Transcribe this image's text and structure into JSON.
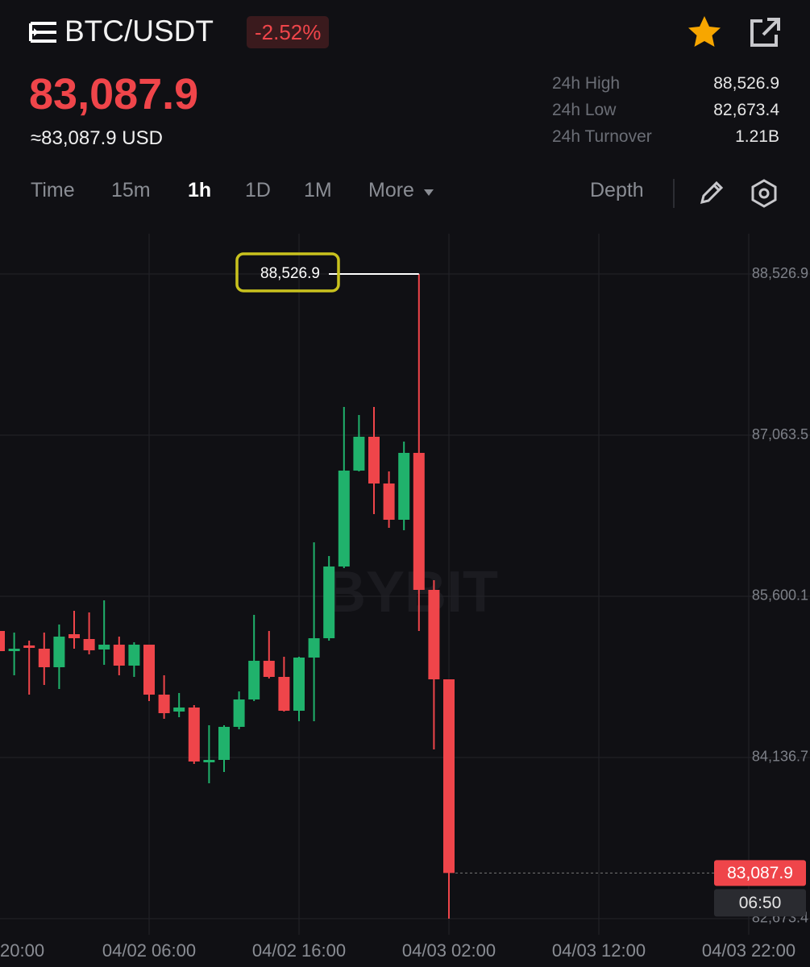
{
  "header": {
    "symbol": "BTC/USDT",
    "change": "-2.52%"
  },
  "price": {
    "last": "83,087.9",
    "usd": "≈83,087.9 USD"
  },
  "stats": [
    {
      "label": "24h High",
      "value": "88,526.9"
    },
    {
      "label": "24h Low",
      "value": "82,673.4"
    },
    {
      "label": "24h Turnover",
      "value": "1.21B"
    }
  ],
  "tabs": [
    "Time",
    "15m",
    "1h",
    "1D",
    "1M",
    "More"
  ],
  "depth": "Depth",
  "chart_data": {
    "type": "candlestick",
    "categories": [
      "20:00",
      null,
      null,
      null,
      null,
      null,
      null,
      null,
      null,
      null,
      "04/02 06:00",
      null,
      null,
      null,
      null,
      null,
      null,
      null,
      null,
      null,
      "04/02 16:00",
      null,
      null,
      null,
      null,
      null,
      null,
      null,
      null,
      null,
      "04/03 02:00",
      null,
      null,
      null,
      null,
      null,
      null,
      null,
      null,
      null,
      "04/03 12:00",
      null,
      null,
      null,
      null,
      null,
      null,
      null,
      null,
      null,
      "04/03 22:00"
    ],
    "open": [
      85285.5,
      85102.5,
      85153.8,
      85124.5,
      84956.2,
      85256.2,
      85212.3,
      85117.2,
      85161.1,
      84970.8,
      85161.1,
      84707.4,
      84553.8,
      84590.4,
      84092.8,
      84114.7,
      84414.7,
      84663.5,
      85014.7,
      84868.4,
      84561.1,
      85044.0,
      85219.6,
      85870.8,
      86741.6,
      87048.9,
      86624.5,
      86295.2,
      86902.5,
      85658.6,
      84846.4,
      null,
      null,
      null,
      null,
      null,
      null,
      null,
      null,
      null,
      null,
      null,
      null,
      null,
      null,
      null,
      null,
      null,
      null,
      null,
      null
    ],
    "high": [
      85285.5,
      85270.8,
      85197.7,
      85270.8,
      85344.0,
      85468.4,
      85453.8,
      85563.5,
      85234.2,
      85183.0,
      85161.1,
      84883.0,
      84722.1,
      84612.3,
      84429.4,
      84429.4,
      84736.7,
      85431.8,
      85285.5,
      85051.3,
      85051.3,
      86090.3,
      85965.9,
      87319.6,
      87246.4,
      87319.6,
      86734.2,
      87005.0,
      88526.9,
      85746.4,
      84846.4,
      null,
      null,
      null,
      null,
      null,
      null,
      null,
      null,
      null,
      null,
      null,
      null,
      null,
      null,
      null,
      null,
      null,
      null,
      null,
      null
    ],
    "low": [
      85073.3,
      84883.0,
      84707.4,
      84795.2,
      84758.6,
      85124.5,
      85073.3,
      84978.2,
      84883.0,
      84868.4,
      84648.9,
      84487.9,
      84502.5,
      84078.2,
      83902.6,
      84005.0,
      84392.8,
      84648.9,
      84853.8,
      84553.8,
      84466.0,
      84466.0,
      85197.7,
      85856.2,
      86734.2,
      86346.4,
      86222.0,
      86200.1,
      85285.5,
      84209.9,
      82673.4,
      null,
      null,
      null,
      null,
      null,
      null,
      null,
      null,
      null,
      null,
      null,
      null,
      null,
      null,
      null,
      null,
      null,
      null,
      null,
      null
    ],
    "close": [
      85102.5,
      85124.5,
      85131.8,
      84956.2,
      85234.2,
      85219.6,
      85109.9,
      85161.1,
      84970.8,
      85161.1,
      84707.4,
      84539.1,
      84590.4,
      84100.1,
      84114.7,
      84414.7,
      84663.5,
      85014.7,
      84868.4,
      84561.1,
      85044.0,
      85219.6,
      85870.8,
      86741.6,
      87048.9,
      86624.5,
      86295.2,
      86902.5,
      85658.6,
      84846.4,
      83087.9,
      null,
      null,
      null,
      null,
      null,
      null,
      null,
      null,
      null,
      null,
      null,
      null,
      null,
      null,
      null,
      null,
      null,
      null,
      null,
      null
    ],
    "up_color": "#20b26c",
    "down_color": "#ef454a",
    "ylim": [
      82526.9,
      88892.8
    ],
    "yticks": [
      {
        "value": 88526.9,
        "label": "88,526.9"
      },
      {
        "value": 87063.5,
        "label": "87,063.5"
      },
      {
        "value": 85600.1,
        "label": "85,600.1"
      },
      {
        "value": 84136.7,
        "label": "84,136.7"
      },
      {
        "value": 82673.4,
        "label": "82,673.4"
      }
    ],
    "grid": true,
    "max_label": "88,526.9",
    "last_price_label": "83,087.9",
    "countdown": "06:50",
    "watermark": "BYBIT"
  }
}
